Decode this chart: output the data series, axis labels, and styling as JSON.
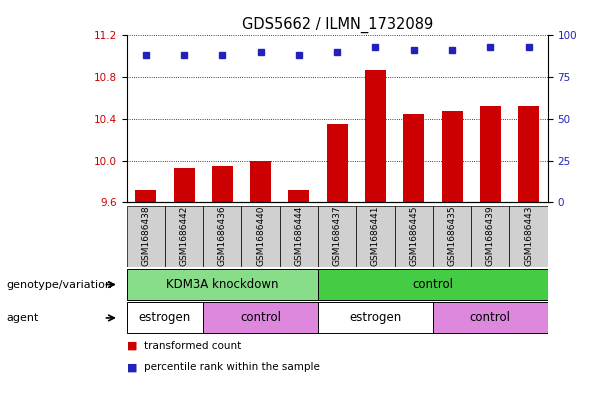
{
  "title": "GDS5662 / ILMN_1732089",
  "samples": [
    "GSM1686438",
    "GSM1686442",
    "GSM1686436",
    "GSM1686440",
    "GSM1686444",
    "GSM1686437",
    "GSM1686441",
    "GSM1686445",
    "GSM1686435",
    "GSM1686439",
    "GSM1686443"
  ],
  "transformed_counts": [
    9.72,
    9.93,
    9.95,
    10.0,
    9.72,
    10.35,
    10.87,
    10.45,
    10.48,
    10.52,
    10.52
  ],
  "percentile_ranks": [
    88,
    88,
    88,
    90,
    88,
    90,
    93,
    91,
    91,
    93,
    93
  ],
  "ylim_left": [
    9.6,
    11.2
  ],
  "ylim_right": [
    0,
    100
  ],
  "yticks_left": [
    9.6,
    10.0,
    10.4,
    10.8,
    11.2
  ],
  "yticks_right": [
    0,
    25,
    50,
    75,
    100
  ],
  "bar_color": "#cc0000",
  "dot_color": "#2222bb",
  "bar_bottom": 9.6,
  "genotype_groups": [
    {
      "label": "KDM3A knockdown",
      "start": 0,
      "end": 5,
      "color": "#88dd88"
    },
    {
      "label": "control",
      "start": 5,
      "end": 11,
      "color": "#44cc44"
    }
  ],
  "agent_groups": [
    {
      "label": "estrogen",
      "start": 0,
      "end": 2,
      "color": "#ffffff"
    },
    {
      "label": "control",
      "start": 2,
      "end": 5,
      "color": "#dd88dd"
    },
    {
      "label": "estrogen",
      "start": 5,
      "end": 8,
      "color": "#ffffff"
    },
    {
      "label": "control",
      "start": 8,
      "end": 11,
      "color": "#dd88dd"
    }
  ],
  "legend_items": [
    {
      "label": "transformed count",
      "color": "#cc0000"
    },
    {
      "label": "percentile rank within the sample",
      "color": "#2222bb"
    }
  ],
  "left_label_color": "#cc0000",
  "right_label_color": "#2222bb",
  "genotype_row_label": "genotype/variation",
  "agent_row_label": "agent",
  "background_color": "#ffffff",
  "tick_label_size": 7.5,
  "title_size": 10.5,
  "sample_label_size": 6.5,
  "row_label_size": 8,
  "row_text_size": 8.5
}
